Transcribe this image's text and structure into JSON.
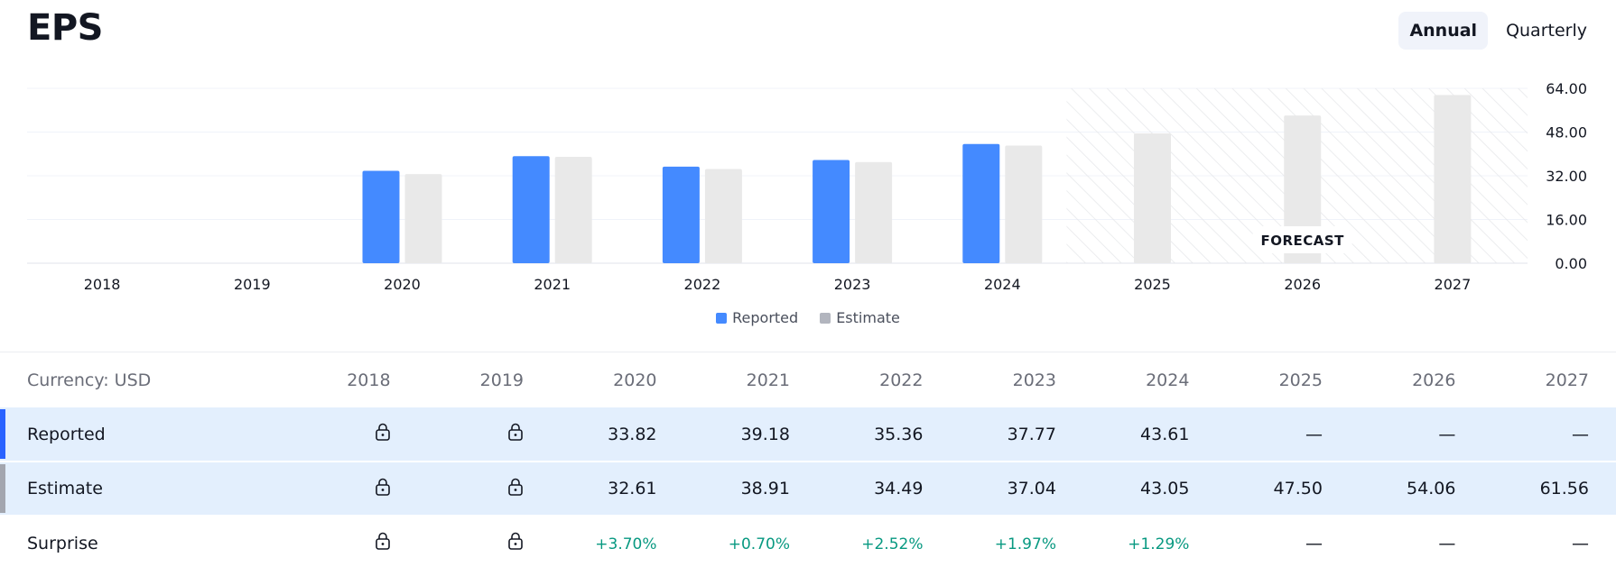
{
  "header": {
    "title": "EPS",
    "toggle": {
      "annual_label": "Annual",
      "quarterly_label": "Quarterly",
      "selected": "Annual"
    }
  },
  "colors": {
    "reported": "#448aff",
    "estimate": "#e9e9e9",
    "positive": "#089981",
    "highlight_row": "#e3effd"
  },
  "chart_data": {
    "type": "bar",
    "categories": [
      "2018",
      "2019",
      "2020",
      "2021",
      "2022",
      "2023",
      "2024",
      "2025",
      "2026",
      "2027"
    ],
    "series": [
      {
        "name": "Reported",
        "values": [
          null,
          null,
          33.82,
          39.18,
          35.36,
          37.77,
          43.61,
          null,
          null,
          null
        ]
      },
      {
        "name": "Estimate",
        "values": [
          null,
          null,
          32.61,
          38.91,
          34.49,
          37.04,
          43.05,
          47.5,
          54.06,
          61.56
        ]
      }
    ],
    "y_ticks": [
      "0.00",
      "16.00",
      "32.00",
      "48.00",
      "64.00"
    ],
    "ylim": [
      0,
      64
    ],
    "forecast_label": "FORECAST",
    "forecast_start": "2025",
    "legend": {
      "position": "bottom-center",
      "items": [
        "Reported",
        "Estimate"
      ]
    },
    "grid": true
  },
  "table": {
    "currency_label": "Currency: USD",
    "years": [
      "2018",
      "2019",
      "2020",
      "2021",
      "2022",
      "2023",
      "2024",
      "2025",
      "2026",
      "2027"
    ],
    "rows": [
      {
        "label": "Reported",
        "values": [
          "lock",
          "lock",
          "33.82",
          "39.18",
          "35.36",
          "37.77",
          "43.61",
          "—",
          "—",
          "—"
        ]
      },
      {
        "label": "Estimate",
        "values": [
          "lock",
          "lock",
          "32.61",
          "38.91",
          "34.49",
          "37.04",
          "43.05",
          "47.50",
          "54.06",
          "61.56"
        ]
      },
      {
        "label": "Surprise",
        "values": [
          "lock",
          "lock",
          "+3.70%",
          "+0.70%",
          "+2.52%",
          "+1.97%",
          "+1.29%",
          "—",
          "—",
          "—"
        ]
      }
    ],
    "lock_icon": "lock-icon"
  }
}
